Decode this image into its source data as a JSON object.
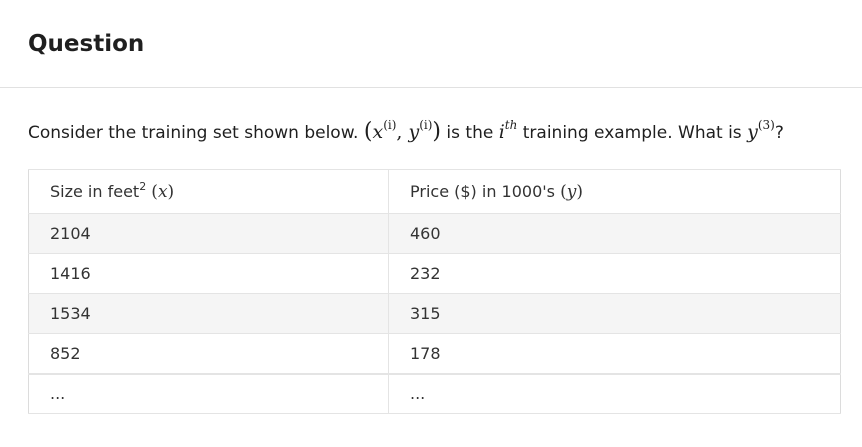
{
  "header": {
    "title": "Question"
  },
  "prompt": {
    "text_before": "Consider the training set shown below.",
    "pair_open": "(",
    "pair_x": "x",
    "pair_x_sup": "(i)",
    "pair_comma": ", ",
    "pair_y": "y",
    "pair_y_sup": "(i)",
    "pair_close": ")",
    "text_middle_1": "is the",
    "ith_base": "i",
    "ith_sup": "th",
    "text_middle_2": "training example. What is",
    "ask_var": "y",
    "ask_sup": "(3)",
    "text_after": "?"
  },
  "table": {
    "headers": [
      {
        "label": "Size in feet",
        "sup": "2",
        "var_open": "(",
        "var": "x",
        "var_close": ")"
      },
      {
        "label": "Price ($) in 1000's",
        "var_open": "(",
        "var": "y",
        "var_close": ")"
      }
    ],
    "rows": [
      [
        "2104",
        "460"
      ],
      [
        "1416",
        "232"
      ],
      [
        "1534",
        "315"
      ],
      [
        "852",
        "178"
      ],
      [
        "...",
        "..."
      ]
    ]
  }
}
